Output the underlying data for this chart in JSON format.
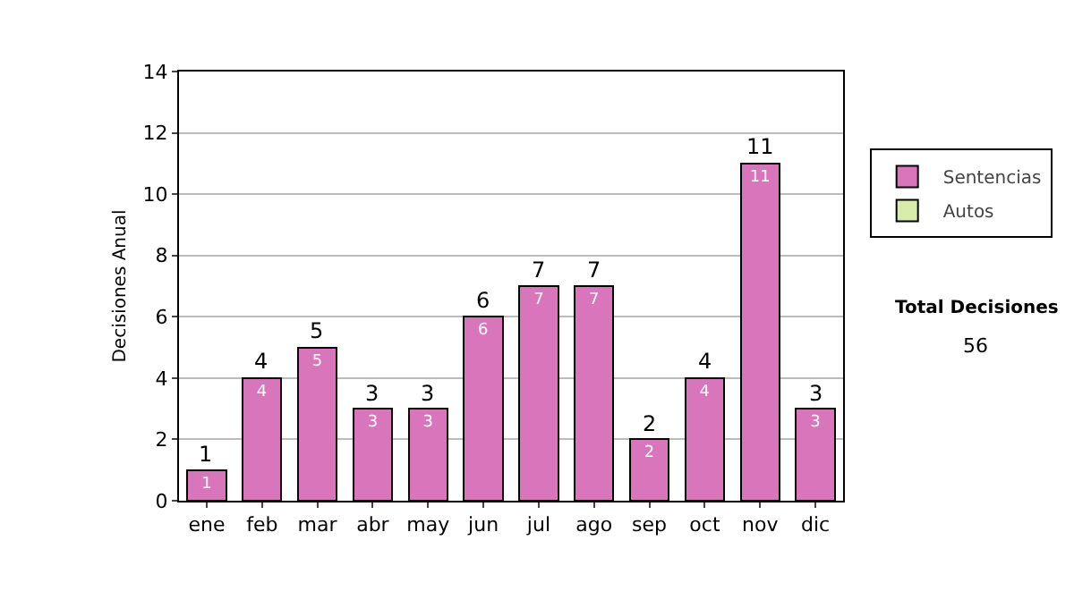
{
  "chart_data": {
    "type": "bar",
    "stacked": true,
    "ylabel": "Decisiones Anual",
    "categories": [
      "ene",
      "feb",
      "mar",
      "abr",
      "may",
      "jun",
      "jul",
      "ago",
      "sep",
      "oct",
      "nov",
      "dic"
    ],
    "series": [
      {
        "name": "Sentencias",
        "color": "#d975bb",
        "values": [
          1,
          4,
          5,
          3,
          3,
          6,
          7,
          7,
          2,
          4,
          11,
          3
        ]
      },
      {
        "name": "Autos",
        "color": "#d8eda8",
        "values": [
          null,
          null,
          null,
          null,
          null,
          null,
          null,
          null,
          null,
          null,
          null,
          null
        ]
      }
    ],
    "totals": [
      "1",
      "4",
      "5",
      "3",
      "3",
      "6",
      "7",
      "7",
      "2",
      "4",
      "11",
      "3"
    ],
    "data_labels": true,
    "ylim": [
      0,
      14
    ],
    "yticks": [
      0,
      2,
      4,
      6,
      8,
      10,
      12,
      14
    ],
    "grid": "y",
    "legend": "right",
    "annotations": [
      "Total Decisiones",
      "56"
    ]
  }
}
